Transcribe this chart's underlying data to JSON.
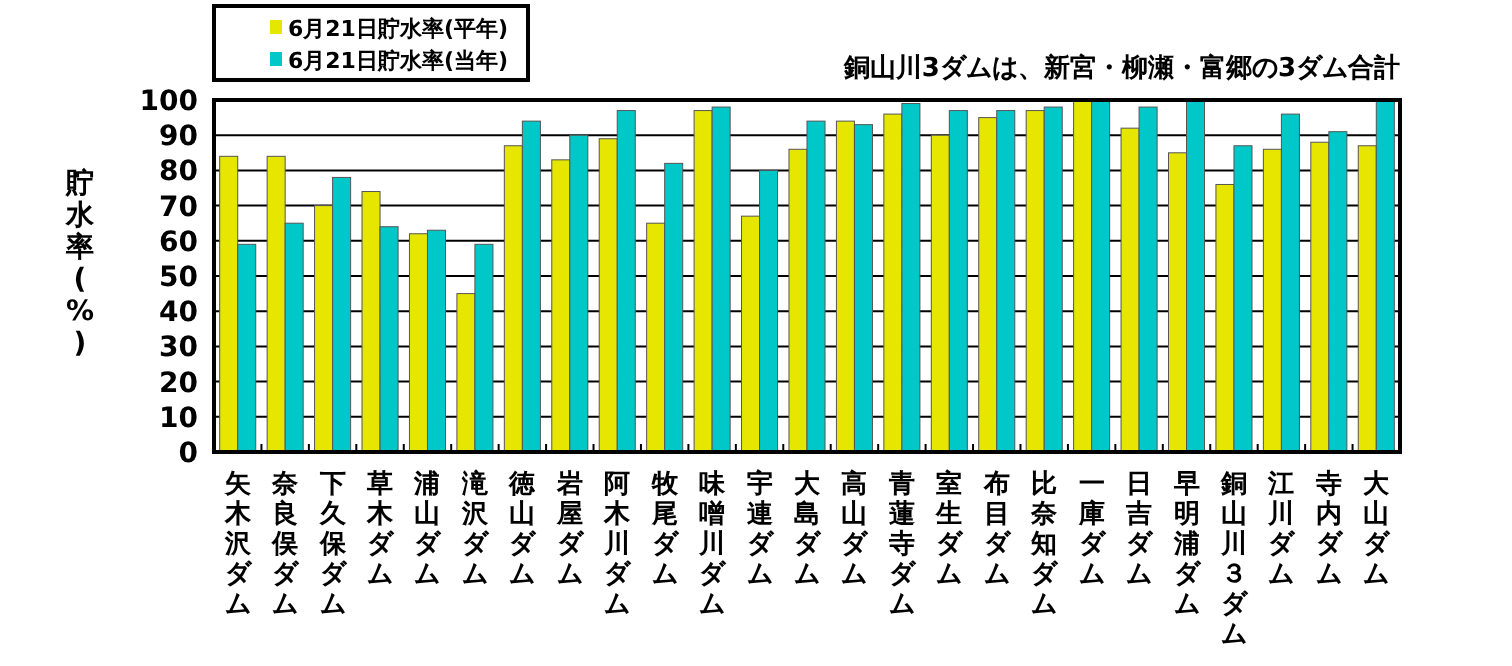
{
  "chart_data": {
    "type": "bar",
    "annotations": [
      "銅山川3ダムは、新宮・柳瀬・富郷の3ダム合計"
    ],
    "ylabel": "貯水率(%)",
    "categories": [
      "矢木沢ダム",
      "奈良俣ダム",
      "下久保ダム",
      "草木ダム",
      "浦山ダム",
      "滝沢ダム",
      "徳山ダム",
      "岩屋ダム",
      "阿木川ダム",
      "牧尾ダム",
      "味噌川ダム",
      "宇連ダム",
      "大島ダム",
      "高山ダム",
      "青蓮寺ダム",
      "室生ダム",
      "布目ダム",
      "比奈知ダム",
      "一庫ダム",
      "日吉ダム",
      "早明浦ダム",
      "銅山川３ダム",
      "江川ダム",
      "寺内ダム",
      "大山ダム"
    ],
    "series": [
      {
        "name": "6月21日貯水率(平年)",
        "color": "#e6e600",
        "values": [
          84,
          84,
          70,
          74,
          62,
          45,
          87,
          83,
          89,
          65,
          97,
          67,
          86,
          94,
          96,
          90,
          95,
          97,
          100,
          92,
          85,
          76,
          86,
          88,
          87
        ]
      },
      {
        "name": "6月21日貯水率(当年)",
        "color": "#00c8c8",
        "values": [
          59,
          65,
          78,
          64,
          63,
          59,
          94,
          90,
          97,
          82,
          98,
          80,
          94,
          93,
          99,
          97,
          97,
          98,
          100,
          98,
          100,
          87,
          96,
          91,
          100
        ]
      }
    ],
    "ylim": [
      0,
      100
    ],
    "yticks": [
      0,
      10,
      20,
      30,
      40,
      50,
      60,
      70,
      80,
      90,
      100
    ],
    "grid": "y",
    "legend": "top left"
  }
}
